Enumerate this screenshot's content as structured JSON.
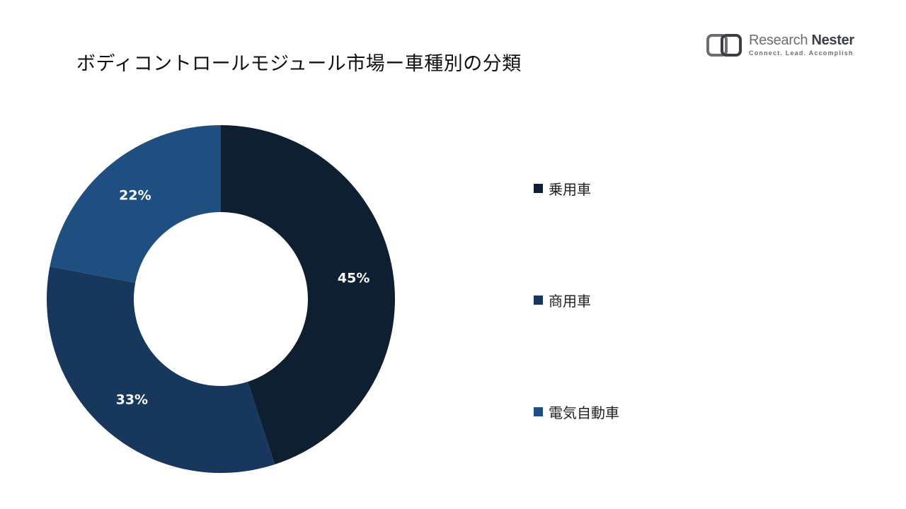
{
  "header": {
    "title": "ボディコントロールモジュール市場ー車種別の分類"
  },
  "logo": {
    "name_light": "Research ",
    "name_bold": "Nester",
    "tagline": "Connect. Lead. Accomplish"
  },
  "chart_data": {
    "type": "pie",
    "variant": "donut",
    "title": "",
    "legend_position": "right",
    "slices": [
      {
        "label": "乗用車",
        "value": 45,
        "value_label": "45%",
        "color": "#0d1f30"
      },
      {
        "label": "商用車",
        "value": 33,
        "value_label": "33%",
        "color": "#17385c"
      },
      {
        "label": "電気自動車",
        "value": 22,
        "value_label": "22%",
        "color": "#1f4f80"
      }
    ],
    "label_color": "#ffffff"
  }
}
